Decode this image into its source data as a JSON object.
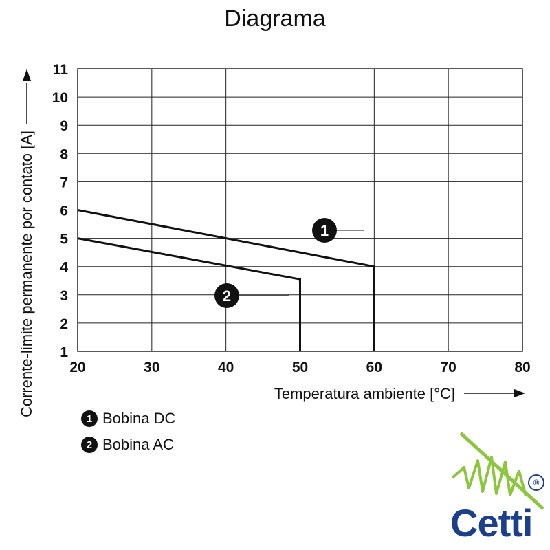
{
  "title": "Diagrama",
  "chart_data": {
    "type": "line",
    "title": "Diagrama",
    "xlabel": "Temperatura ambiente [°C]",
    "ylabel": "Corrente-limite permanente por contato [A]",
    "xlim": [
      20,
      80
    ],
    "ylim": [
      1,
      11
    ],
    "xticks": [
      20,
      30,
      40,
      50,
      60,
      70,
      80
    ],
    "yticks": [
      1,
      2,
      3,
      4,
      5,
      6,
      7,
      8,
      9,
      10,
      11
    ],
    "grid": true,
    "series": [
      {
        "name": "Bobina DC",
        "marker": "1",
        "x": [
          20,
          60,
          60
        ],
        "y": [
          6,
          4,
          1
        ]
      },
      {
        "name": "Bobina AC",
        "marker": "2",
        "x": [
          20,
          50,
          50
        ],
        "y": [
          5,
          3.55,
          1
        ]
      }
    ]
  },
  "legend": [
    {
      "marker": "1",
      "label": "Bobina DC"
    },
    {
      "marker": "2",
      "label": "Bobina AC"
    }
  ],
  "brand": {
    "name": "Cetti",
    "registered_mark": "®",
    "color": "#1c3f8c",
    "accent": "#8cc63f"
  }
}
